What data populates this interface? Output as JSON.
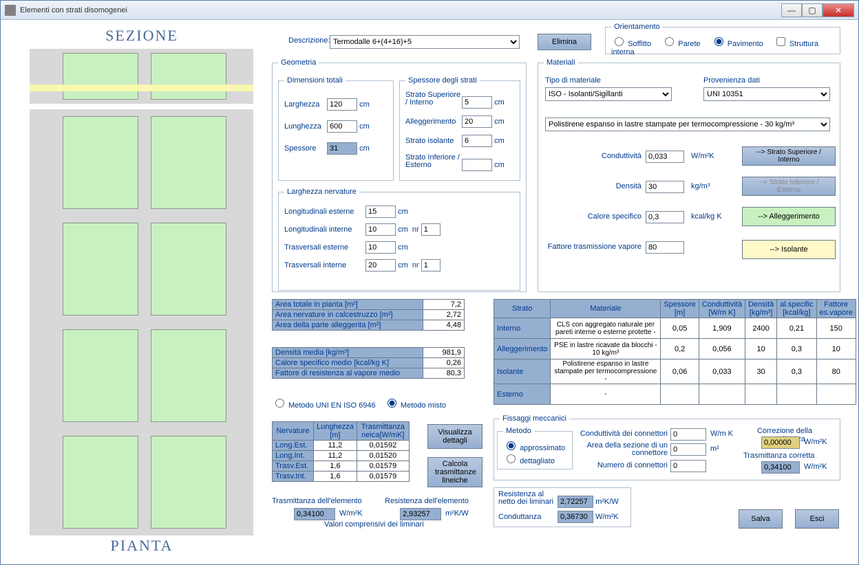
{
  "window_title": "Elementi con strati disomogenei",
  "sezione_label": "SEZIONE",
  "pianta_label": "PIANTA",
  "descrizione_label": "Descrizione:",
  "descrizione_value": "Termodalle 6+(4+16)+5",
  "elimina_btn": "Elimina",
  "orientamento": {
    "legend": "Orientamento",
    "soffitto": "Soffitto",
    "parete": "Parete",
    "pavimento": "Pavimento",
    "struttura": "Struttura interna"
  },
  "geometria": {
    "legend": "Geometria",
    "dim_legend": "Dimensioni totali",
    "larghezza_l": "Larghezza",
    "larghezza_v": "120",
    "lunghezza_l": "Lunghezza",
    "lunghezza_v": "600",
    "spessore_l": "Spessore",
    "spessore_v": "31",
    "strati_legend": "Spessore degli strati",
    "sup_l": "Strato Superiore / Interno",
    "sup_v": "5",
    "all_l": "Alleggerimento",
    "all_v": "20",
    "iso_l": "Strato isolante",
    "iso_v": "6",
    "inf_l": "Strato Inferiore / Esterno",
    "inf_v": "",
    "nerv_legend": "Larghezza nervature",
    "le_l": "Longitudinali esterne",
    "le_v": "15",
    "li_l": "Longitudinali interne",
    "li_v": "10",
    "li_nr": "1",
    "te_l": "Trasversali esterne",
    "te_v": "10",
    "ti_l": "Trasversali interne",
    "ti_v": "20",
    "ti_nr": "1",
    "cm": "cm",
    "nr": "nr"
  },
  "materiali": {
    "legend": "Materiali",
    "tipo_l": "Tipo di materiale",
    "tipo_v": "ISO - Isolanti/Sigillanti",
    "prov_l": "Provenienza dati",
    "prov_v": "UNI 10351",
    "mat_v": "Polistirene espanso in lastre stampate per termocompressione - 30 kg/m³",
    "cond_l": "Conduttività",
    "cond_v": "0,033",
    "cond_u": "W/m²K",
    "dens_l": "Densità",
    "dens_v": "30",
    "dens_u": "kg/m³",
    "cal_l": "Calore specifico",
    "cal_v": "0,3",
    "cal_u": "kcal/kg K",
    "vap_l": "Fattore trasmissione vapore",
    "vap_v": "80",
    "btn_sup": "--> Strato Superiore / Interno",
    "btn_inf": "--> Strato Inferiore / Esterno",
    "btn_all": "--> Alleggerimento",
    "btn_iso": "--> Isolante"
  },
  "aree": {
    "r1l": "Area totale in pianta [m²]",
    "r1v": "7,2",
    "r2l": "Area nervature in calcestruzzo [m²]",
    "r2v": "2,72",
    "r3l": "Area della parte alleggerita [m²]",
    "r3v": "4,48"
  },
  "medie": {
    "r1l": "Densità media [kg/m³]",
    "r1v": "981,9",
    "r2l": "Calore specifico medio [kcal/kg K]",
    "r2v": "0,26",
    "r3l": "Fattore di resistenza al vapore medio",
    "r3v": "80,3"
  },
  "metodo": {
    "uni": "Metodo UNI EN ISO 6946",
    "misto": "Metodo misto"
  },
  "nerv_tbl": {
    "h1": "Nervature",
    "h2": "Lunghezza [m]",
    "h3": "Trasmittanza neica[W/mK]",
    "rows": [
      [
        "Long.Est.",
        "11,2",
        "0,01592"
      ],
      [
        "Long.Int.",
        "11,2",
        "0,01520"
      ],
      [
        "Trasv.Est.",
        "1,6",
        "0,01579"
      ],
      [
        "Trasv.Int.",
        "1,6",
        "0,01579"
      ]
    ]
  },
  "vis_btn": "Visualizza dettagli",
  "calc_btn": "Calcola trasmittanze lineiche",
  "trasm_l": "Trasmittanza dell'elemento",
  "trasm_v": "0,34100",
  "trasm_u": "W/m²K",
  "resist_l": "Resistenza dell'elemento",
  "resist_v": "2,93257",
  "resist_u": "m²K/W",
  "valcomp": "Valori comprensivi dei liminari",
  "strati_tbl": {
    "h": [
      "Strato",
      "Materiale",
      "Spessore [m]",
      "Conduttività [W/m K]",
      "Densità [kg/m³]",
      "al.specific [kcal/kg]",
      "Fattore es.vapore"
    ],
    "rows": [
      [
        "Interno",
        "CLS con aggregato naturale per pareti interne o esterne protette -",
        "0,05",
        "1,909",
        "2400",
        "0,21",
        "150"
      ],
      [
        "Alleggerimento",
        "PSE in lastre ricavate da blocchi - 10 kg/m³",
        "0,2",
        "0,056",
        "10",
        "0,3",
        "10"
      ],
      [
        "Isolante",
        "Polistirene espanso in lastre stampate per termocompressione -",
        "0,06",
        "0,033",
        "30",
        "0,3",
        "80"
      ],
      [
        "Esterno",
        "-",
        "",
        "",
        "",
        "",
        ""
      ]
    ]
  },
  "fissaggi": {
    "legend": "Fissaggi meccanici",
    "metodo_legend": "Metodo",
    "appross": "approssimato",
    "dett": "dettagliato",
    "cond_l": "Conduttività dei connettori",
    "cond_v": "0",
    "cond_u": "W/m K",
    "area_l": "Area della sezione di un connettore",
    "area_v": "0",
    "area_u": "m²",
    "num_l": "Numero di connettori",
    "num_v": "0",
    "corr_l": "Correzione della trasmittanza",
    "corr_v": "0,00000",
    "corr_u": "W/m²K",
    "tc_l": "Trasmittanza corretta",
    "tc_v": "0,34100",
    "tc_u": "W/m²K"
  },
  "resnet_l": "Resistenza al netto dei liminari",
  "resnet_v": "2,72257",
  "resnet_u": "m²K/W",
  "condut_l": "Conduttanza",
  "condut_v": "0,36730",
  "condut_u": "W/m²K",
  "salva": "Salva",
  "esci": "Esci"
}
